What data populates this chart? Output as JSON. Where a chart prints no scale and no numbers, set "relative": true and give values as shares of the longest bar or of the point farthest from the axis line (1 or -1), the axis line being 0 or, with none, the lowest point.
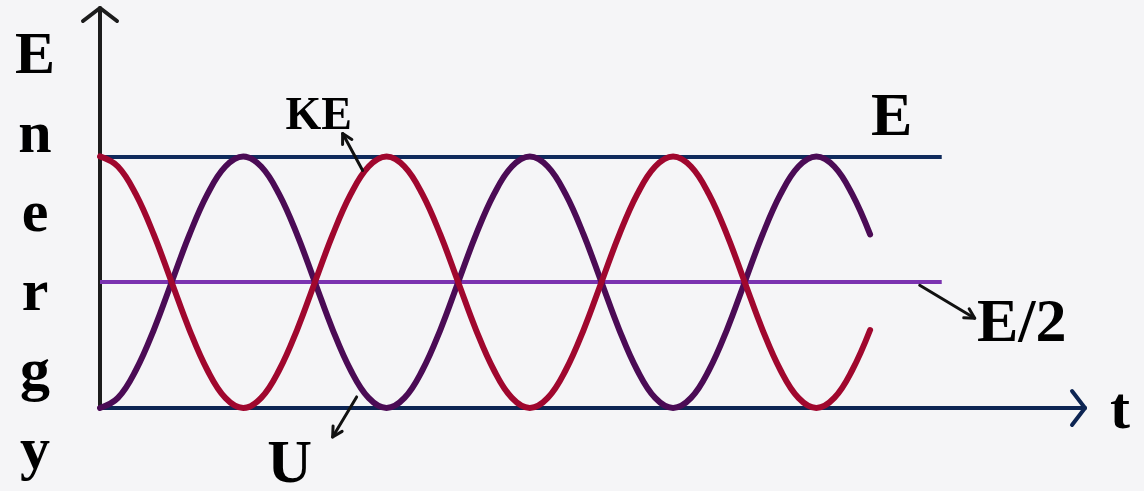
{
  "chart_data": {
    "type": "line",
    "relative": true,
    "xlabel": "t",
    "ylabel": "Energy",
    "categories": [
      null,
      null,
      null,
      null,
      null,
      null,
      null,
      null,
      null,
      null,
      null,
      null,
      null,
      null,
      null,
      null,
      null,
      null,
      null,
      null,
      null,
      null,
      null,
      null,
      null,
      null,
      null,
      null,
      null,
      null,
      null,
      null,
      null,
      null,
      null,
      null,
      null,
      null,
      null,
      null,
      null,
      null,
      null,
      null,
      null,
      null,
      null,
      null,
      null,
      null,
      null,
      null,
      null,
      null,
      null,
      null
    ],
    "series": [
      {
        "name": "KE",
        "color": "#a0072e",
        "values": [
          1,
          0.96,
          0.85,
          0.69,
          0.5,
          0.31,
          0.15,
          0.04,
          0,
          0.04,
          0.15,
          0.31,
          0.5,
          0.69,
          0.85,
          0.96,
          1,
          0.96,
          0.85,
          0.69,
          0.5,
          0.31,
          0.15,
          0.04,
          0,
          0.04,
          0.15,
          0.31,
          0.5,
          0.69,
          0.85,
          0.96,
          1,
          0.96,
          0.85,
          0.69,
          0.5,
          0.31,
          0.15,
          0.04,
          0,
          0.04,
          0.15,
          0.31,
          null,
          null,
          null,
          null,
          null,
          null,
          null,
          null,
          null,
          null,
          null,
          null
        ]
      },
      {
        "name": "U",
        "color": "#4b0b55",
        "values": [
          0,
          0.04,
          0.15,
          0.31,
          0.5,
          0.69,
          0.85,
          0.96,
          1,
          0.96,
          0.85,
          0.69,
          0.5,
          0.31,
          0.15,
          0.04,
          0,
          0.04,
          0.15,
          0.31,
          0.5,
          0.69,
          0.85,
          0.96,
          1,
          0.96,
          0.85,
          0.69,
          0.5,
          0.31,
          0.15,
          0.04,
          0,
          0.04,
          0.15,
          0.31,
          0.5,
          0.69,
          0.85,
          0.96,
          1,
          0.96,
          0.85,
          0.69,
          null,
          null,
          null,
          null,
          null,
          null,
          null,
          null,
          null,
          null,
          null,
          null
        ]
      }
    ],
    "ref_lines": [
      {
        "axis": "y",
        "value": 1,
        "label": "E",
        "color": "#0f2a5c"
      },
      {
        "axis": "y",
        "value": 0.5,
        "label": "E/2",
        "color": "#7b33b0"
      }
    ],
    "grid": false,
    "legend": false,
    "marker": "none",
    "line_style": "solid"
  }
}
